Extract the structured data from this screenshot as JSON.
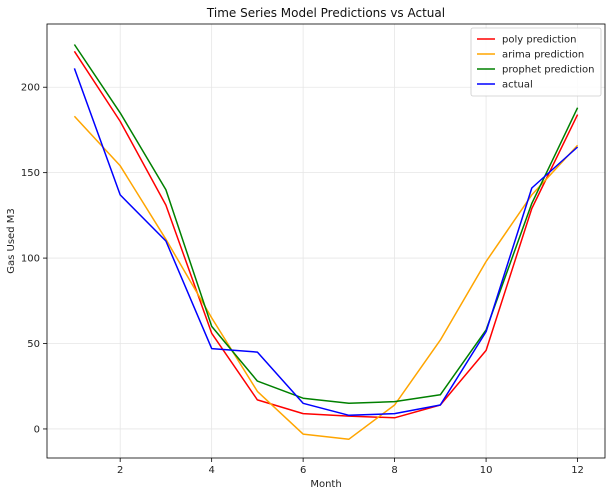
{
  "chart_data": {
    "type": "line",
    "title": "Time Series Model Predictions vs Actual",
    "xlabel": "Month",
    "ylabel": "Gas Used M3",
    "x": [
      1,
      2,
      3,
      4,
      5,
      6,
      7,
      8,
      9,
      10,
      11,
      12
    ],
    "xlim": [
      0.4,
      12.6
    ],
    "ylim": [
      -17,
      237
    ],
    "xticks": [
      2,
      4,
      6,
      8,
      10,
      12
    ],
    "yticks": [
      0,
      50,
      100,
      150,
      200
    ],
    "grid": true,
    "legend_position": "top-right",
    "series": [
      {
        "name": "poly prediction",
        "color": "#ff0000",
        "values": [
          221,
          180,
          131,
          56,
          17,
          9,
          7.5,
          6.5,
          14,
          46,
          129,
          184
        ]
      },
      {
        "name": "arima prediction",
        "color": "#ffa500",
        "values": [
          183,
          154,
          111,
          65,
          22,
          -3,
          -6,
          14,
          52,
          98,
          137,
          166
        ]
      },
      {
        "name": "prophet prediction",
        "color": "#008000",
        "values": [
          225,
          185,
          140,
          60,
          28,
          18,
          15,
          16,
          20,
          58,
          132,
          188
        ]
      },
      {
        "name": "actual",
        "color": "#0000ff",
        "values": [
          211,
          137,
          110,
          47,
          45,
          15,
          8,
          9,
          14,
          57,
          141,
          165
        ]
      }
    ]
  }
}
